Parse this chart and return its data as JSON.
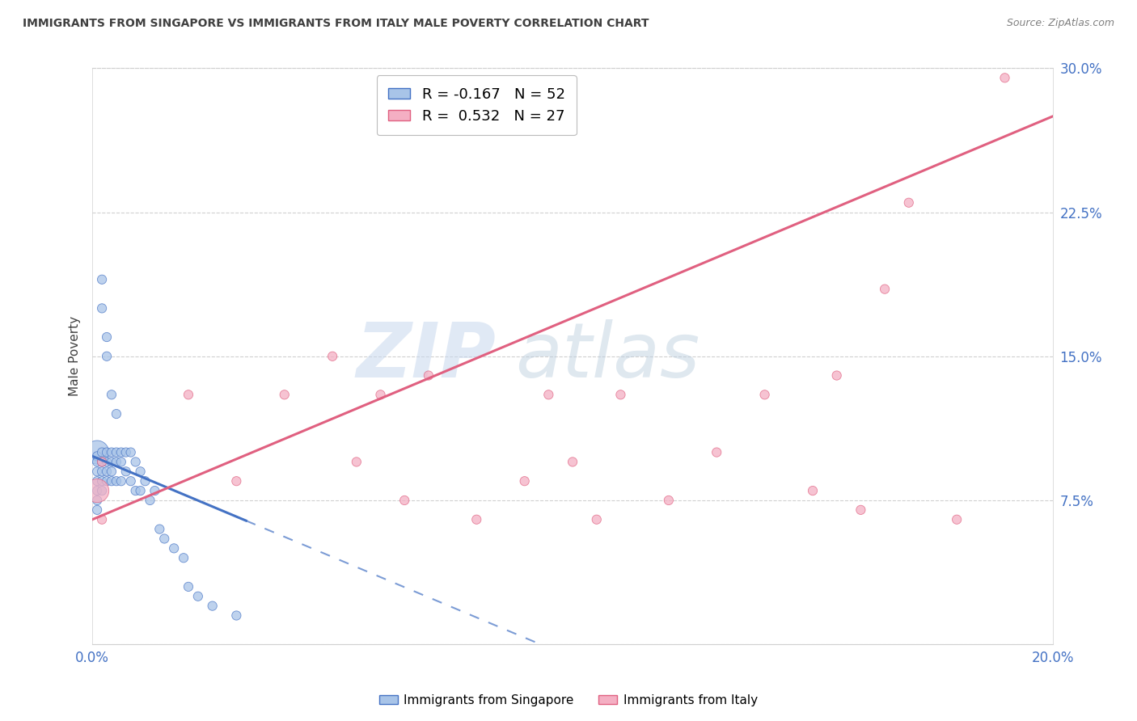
{
  "title": "IMMIGRANTS FROM SINGAPORE VS IMMIGRANTS FROM ITALY MALE POVERTY CORRELATION CHART",
  "source": "Source: ZipAtlas.com",
  "ylabel": "Male Poverty",
  "watermark": "ZIPatlas",
  "legend_singapore": "R = -0.167   N = 52",
  "legend_italy": "R =  0.532   N = 27",
  "legend_label_singapore": "Immigrants from Singapore",
  "legend_label_italy": "Immigrants from Italy",
  "xlim": [
    0.0,
    0.2
  ],
  "ylim": [
    0.0,
    0.3
  ],
  "yticks": [
    0.0,
    0.075,
    0.15,
    0.225,
    0.3
  ],
  "ytick_labels": [
    "",
    "7.5%",
    "15.0%",
    "22.5%",
    "30.0%"
  ],
  "xticks": [
    0.0,
    0.05,
    0.1,
    0.15,
    0.2
  ],
  "xtick_labels": [
    "0.0%",
    "",
    "",
    "",
    "20.0%"
  ],
  "color_singapore": "#a8c4e8",
  "color_italy": "#f4afc3",
  "color_singapore_line": "#4472c4",
  "color_italy_line": "#e06080",
  "background_color": "#ffffff",
  "title_color": "#404040",
  "source_color": "#808080",
  "tick_color": "#4472c4",
  "ylabel_color": "#404040",
  "grid_color": "#d0d0d0",
  "watermark_color": "#c5d8f0",
  "sg_line_intercept": 0.098,
  "sg_line_slope": -1.05,
  "it_line_intercept": 0.065,
  "it_line_slope": 1.05,
  "singapore_x": [
    0.001,
    0.001,
    0.001,
    0.001,
    0.001,
    0.001,
    0.001,
    0.001,
    0.002,
    0.002,
    0.002,
    0.002,
    0.002,
    0.002,
    0.002,
    0.003,
    0.003,
    0.003,
    0.003,
    0.003,
    0.003,
    0.004,
    0.004,
    0.004,
    0.004,
    0.004,
    0.005,
    0.005,
    0.005,
    0.005,
    0.006,
    0.006,
    0.006,
    0.007,
    0.007,
    0.008,
    0.008,
    0.009,
    0.009,
    0.01,
    0.01,
    0.011,
    0.012,
    0.013,
    0.014,
    0.015,
    0.017,
    0.019,
    0.02,
    0.022,
    0.025,
    0.03
  ],
  "singapore_y": [
    0.1,
    0.098,
    0.095,
    0.09,
    0.085,
    0.08,
    0.075,
    0.07,
    0.19,
    0.175,
    0.1,
    0.095,
    0.09,
    0.085,
    0.08,
    0.16,
    0.15,
    0.1,
    0.095,
    0.09,
    0.085,
    0.13,
    0.1,
    0.095,
    0.09,
    0.085,
    0.12,
    0.1,
    0.095,
    0.085,
    0.1,
    0.095,
    0.085,
    0.1,
    0.09,
    0.1,
    0.085,
    0.095,
    0.08,
    0.09,
    0.08,
    0.085,
    0.075,
    0.08,
    0.06,
    0.055,
    0.05,
    0.045,
    0.03,
    0.025,
    0.02,
    0.015
  ],
  "singapore_sizes": [
    200,
    30,
    30,
    30,
    30,
    30,
    30,
    30,
    30,
    30,
    30,
    30,
    30,
    30,
    30,
    30,
    30,
    30,
    30,
    30,
    30,
    30,
    30,
    30,
    30,
    30,
    30,
    30,
    30,
    30,
    30,
    30,
    30,
    30,
    30,
    30,
    30,
    30,
    30,
    30,
    30,
    30,
    30,
    30,
    30,
    30,
    30,
    30,
    30,
    30,
    30,
    30
  ],
  "italy_x": [
    0.001,
    0.002,
    0.002,
    0.02,
    0.03,
    0.04,
    0.05,
    0.055,
    0.06,
    0.065,
    0.07,
    0.08,
    0.09,
    0.095,
    0.1,
    0.105,
    0.11,
    0.12,
    0.13,
    0.14,
    0.15,
    0.155,
    0.16,
    0.165,
    0.17,
    0.18,
    0.19
  ],
  "italy_y": [
    0.08,
    0.095,
    0.065,
    0.13,
    0.085,
    0.13,
    0.15,
    0.095,
    0.13,
    0.075,
    0.14,
    0.065,
    0.085,
    0.13,
    0.095,
    0.065,
    0.13,
    0.075,
    0.1,
    0.13,
    0.08,
    0.14,
    0.07,
    0.185,
    0.23,
    0.065,
    0.295
  ],
  "italy_sizes": [
    200,
    30,
    30,
    30,
    30,
    30,
    30,
    30,
    30,
    30,
    30,
    30,
    30,
    30,
    30,
    30,
    30,
    30,
    30,
    30,
    30,
    30,
    30,
    30,
    30,
    30,
    30
  ]
}
